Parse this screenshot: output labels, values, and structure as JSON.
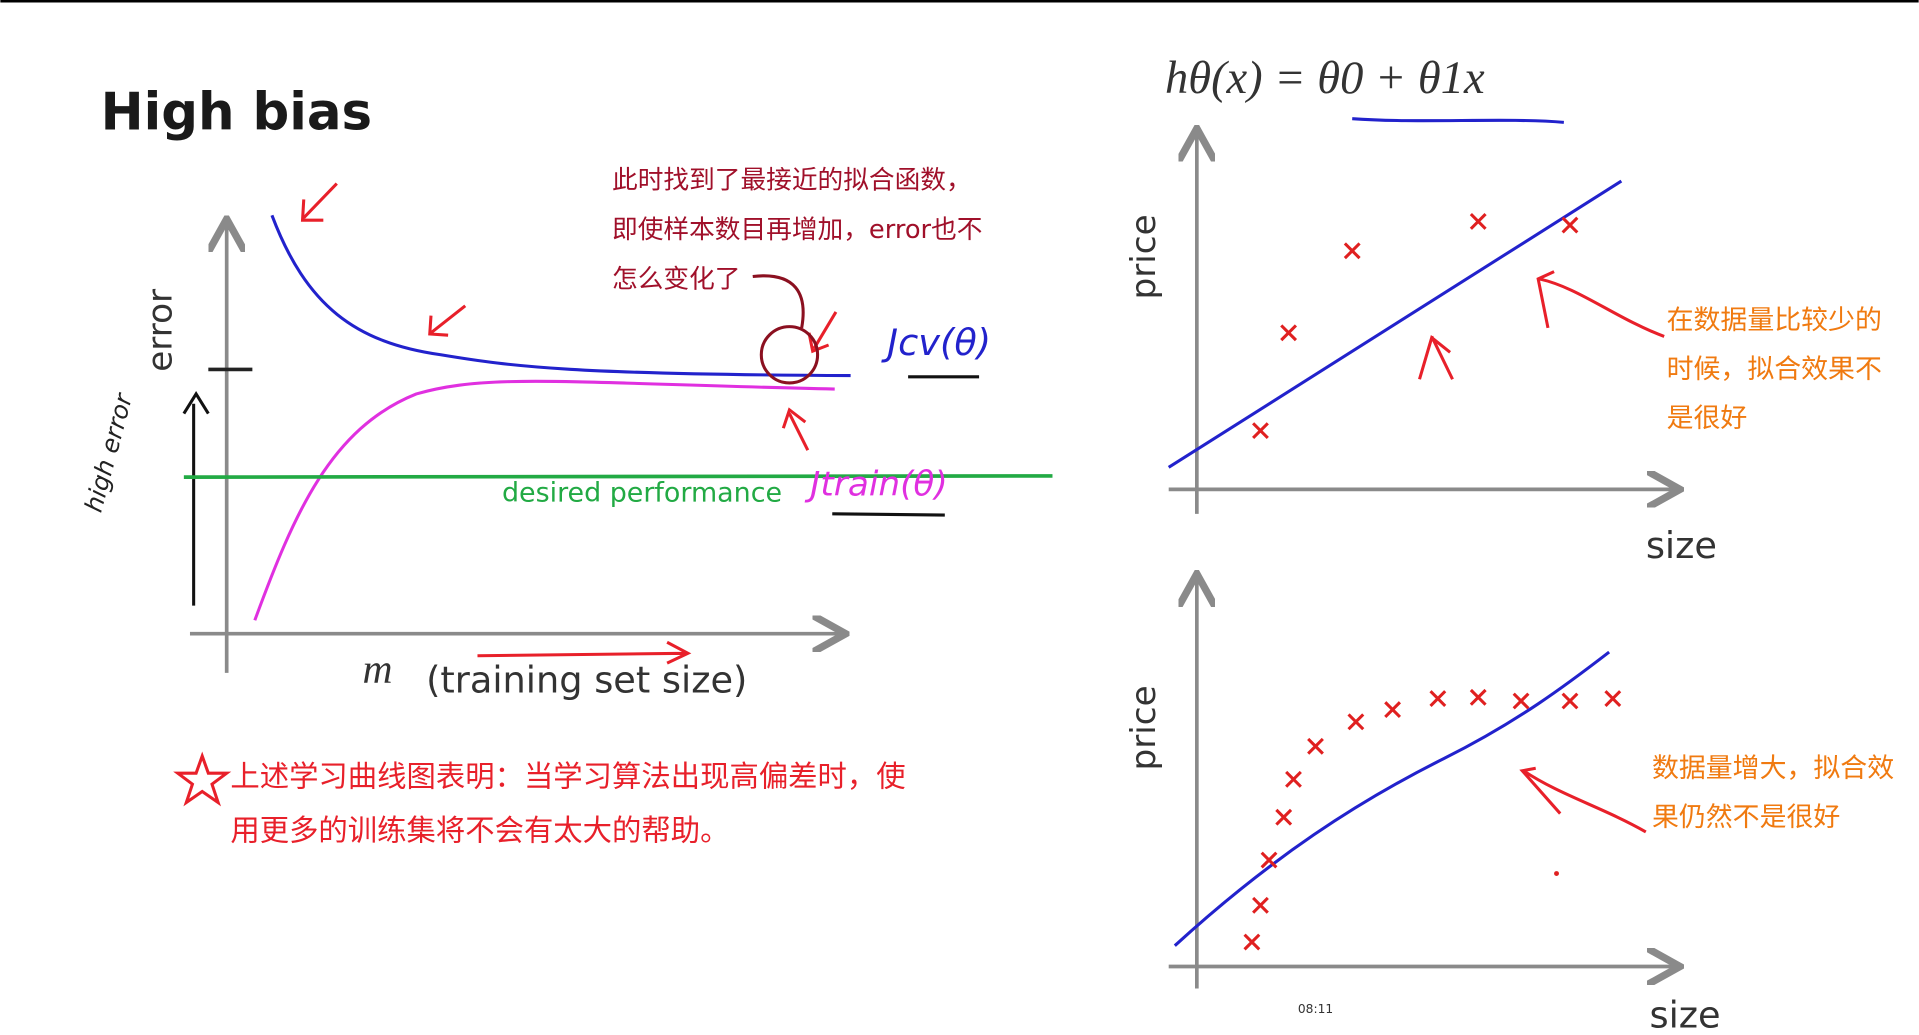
{
  "slide": {
    "title": "High bias",
    "formula": "hθ(x) = θ0 + θ1x",
    "learning_curve": {
      "y_label": "error",
      "x_var": "m",
      "x_label": "(training set size)",
      "side_note": "high error",
      "cv_label": "Jcv(θ)",
      "train_label": "Jtrain(θ)",
      "desired": "desired performance",
      "note_lines": [
        "此时找到了最接近的拟合函数，",
        "即使样本数目再增加，error也不",
        "怎么变化了"
      ]
    },
    "conclusion_lines": [
      "上述学习曲线图表明：当学习算法出现高偏差时，使",
      "用更多的训练集将不会有太大的帮助。"
    ],
    "top_plot": {
      "y_label": "price",
      "x_label": "size",
      "note_lines": [
        "在数据量比较少的",
        "时候，拟合效果不",
        "是很好"
      ]
    },
    "bottom_plot": {
      "y_label": "price",
      "x_label": "size",
      "note_lines": [
        "数据量增大，拟合效",
        "果仍然不是很好"
      ]
    },
    "timestamp": "08:11"
  }
}
